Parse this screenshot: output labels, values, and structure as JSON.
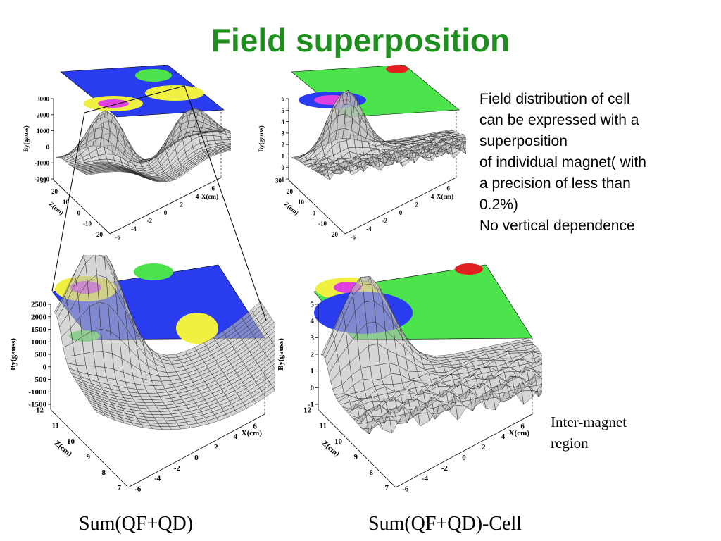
{
  "title": "Field superposition",
  "description": {
    "lines": [
      "Field distribution of cell",
      "can be expressed with a",
      "superposition",
      "of individual magnet( with",
      "a precision of less than",
      "0.2%)",
      "No vertical dependence"
    ]
  },
  "annotation": {
    "lines": [
      "Inter-magnet",
      "region"
    ]
  },
  "captions": {
    "left": "Sum(QF+QD)",
    "right": "Sum(QF+QD)-Cell"
  },
  "colors": {
    "title": "#1e8f1e",
    "blue": "#2a3cf0",
    "green": "#4ce34c",
    "yellow": "#f0f040",
    "magenta": "#e040e0",
    "red": "#e02020",
    "cyan": "#40e0e0"
  },
  "plots": [
    {
      "id": "top-left",
      "ylabel": "By(gauss)",
      "xlabel": "X(cm)",
      "zlabel": "Z(cm)",
      "yticks": [
        "3000",
        "2000",
        "1000",
        "0",
        "-1000",
        "-2000"
      ],
      "xticks": [
        "-6",
        "-4",
        "-2",
        "0",
        "2",
        "4",
        "6"
      ],
      "zticks": [
        "30",
        "20",
        "10",
        "0",
        "-10",
        "-20"
      ]
    },
    {
      "id": "top-right",
      "ylabel": "By(gauss)",
      "xlabel": "X(cm)",
      "zlabel": "Z(cm)",
      "yticks": [
        "6",
        "5",
        "4",
        "3",
        "2",
        "1",
        "0",
        "-1"
      ],
      "xticks": [
        "-6",
        "-4",
        "-2",
        "0",
        "2",
        "4",
        "6"
      ],
      "zticks": [
        "30",
        "20",
        "10",
        "0",
        "-10",
        "-20"
      ]
    },
    {
      "id": "bottom-left",
      "ylabel": "By(gauss)",
      "xlabel": "X(cm)",
      "zlabel": "Z(cm)",
      "yticks": [
        "2500",
        "2000",
        "1500",
        "1000",
        "500",
        "0",
        "-500",
        "-1000",
        "-1500"
      ],
      "xticks": [
        "-6",
        "-4",
        "-2",
        "0",
        "2",
        "4",
        "6"
      ],
      "zticks": [
        "12",
        "11",
        "10",
        "9",
        "8",
        "7"
      ]
    },
    {
      "id": "bottom-right",
      "ylabel": "By(gauss)",
      "xlabel": "X(cm)",
      "zlabel": "Z(cm)",
      "yticks": [
        "5",
        "4",
        "3",
        "2",
        "1",
        "0",
        "-1"
      ],
      "xticks": [
        "-6",
        "-4",
        "-2",
        "0",
        "2",
        "4",
        "6"
      ],
      "zticks": [
        "12",
        "11",
        "10",
        "9",
        "8",
        "7"
      ]
    }
  ]
}
